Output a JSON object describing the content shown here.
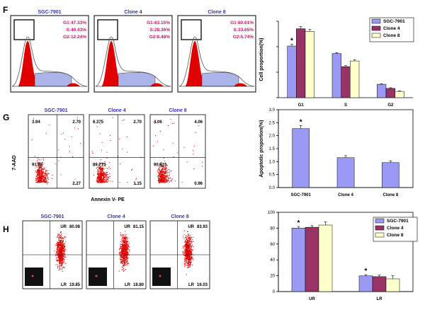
{
  "panels": {
    "F": {
      "label": "F",
      "histograms": [
        {
          "title": "SGC-7901",
          "g1": "G1:47.33%",
          "s": "S:40.43%",
          "g2": "G2:12.24%"
        },
        {
          "title": "Clone 4",
          "g1": "G1:63.15%",
          "s": "S:28.36%",
          "g2": "G2:8.48%"
        },
        {
          "title": "Clone 8",
          "g1": "G1:60.61%",
          "s": "S:33.65%",
          "g2": "G2:5.74%"
        }
      ]
    },
    "G": {
      "label": "G",
      "ylabel": "7-AAD",
      "xlabel": "Annexin V- PE",
      "plots": [
        {
          "title": "SGC-7901",
          "ul": "3.94",
          "ur": "2.70",
          "ll": "91.08",
          "lr": "2.27"
        },
        {
          "title": "Clone 4",
          "ul": "6.375",
          "ur": "2.70",
          "ll": "89.775",
          "lr": "1.15"
        },
        {
          "title": "Clone 8",
          "ul": "4.06",
          "ur": "4.06",
          "ll": "90.915",
          "lr": "0.96"
        }
      ]
    },
    "H": {
      "label": "H",
      "plots": [
        {
          "title": "SGC-7901",
          "ur_label": "UR",
          "ur": "80.08",
          "lr_label": "LR",
          "lr": "19.85"
        },
        {
          "title": "Clone 4",
          "ur_label": "UR",
          "ur": "81.15",
          "lr_label": "LR",
          "lr": "18.80"
        },
        {
          "title": "Clone 8",
          "ur_label": "UR",
          "ur": "83.93",
          "lr_label": "LR",
          "lr": "16.03"
        }
      ]
    }
  },
  "chart_data": [
    {
      "type": "bar",
      "ylabel": "Cell proportion(%)",
      "categories": [
        "G1",
        "S",
        "G2"
      ],
      "series": [
        {
          "name": "SGC-7901",
          "values": [
            47.33,
            40.43,
            12.24
          ],
          "errors": [
            1.5,
            0.8,
            0.6
          ]
        },
        {
          "name": "Clone 4",
          "values": [
            63.15,
            28.36,
            8.48
          ],
          "errors": [
            2.0,
            1.0,
            0.6
          ]
        },
        {
          "name": "Clone 8",
          "values": [
            60.61,
            33.65,
            5.74
          ],
          "errors": [
            1.8,
            1.0,
            0.5
          ]
        }
      ],
      "ylim": [
        0,
        70
      ],
      "annotation": "*",
      "legend": "top-right",
      "colors": [
        "#9a9af5",
        "#993366",
        "#ffffcc"
      ]
    },
    {
      "type": "bar",
      "ylabel": "Apoptotic proportion(%)",
      "categories": [
        "SGC-7901",
        "Clone 4",
        "Clone 8"
      ],
      "series": [
        {
          "name": "",
          "values": [
            2.27,
            1.15,
            0.96
          ],
          "errors": [
            0.12,
            0.08,
            0.07
          ]
        }
      ],
      "ylim": [
        0,
        3.0
      ],
      "yticks": [
        "0.0",
        "0.5",
        "1.0",
        "1.5",
        "2.0",
        "2.5",
        "3.0"
      ],
      "annotation": "*",
      "colors": [
        "#9a9af5"
      ]
    },
    {
      "type": "bar",
      "ylabel": "",
      "categories": [
        "UR",
        "LR"
      ],
      "series": [
        {
          "name": "SGC-7901",
          "values": [
            80.08,
            19.85
          ],
          "errors": [
            2.0,
            1.5
          ]
        },
        {
          "name": "Clone 4",
          "values": [
            81.15,
            18.8
          ],
          "errors": [
            2.0,
            2.0
          ]
        },
        {
          "name": "Clone 8",
          "values": [
            83.93,
            16.03
          ],
          "errors": [
            4.0,
            4.0
          ]
        }
      ],
      "ylim": [
        0,
        100
      ],
      "yticks": [
        "0",
        "20",
        "40",
        "60",
        "80",
        "100"
      ],
      "annotation": "*",
      "legend": "top-right",
      "colors": [
        "#9a9af5",
        "#993366",
        "#ffffcc"
      ]
    }
  ]
}
